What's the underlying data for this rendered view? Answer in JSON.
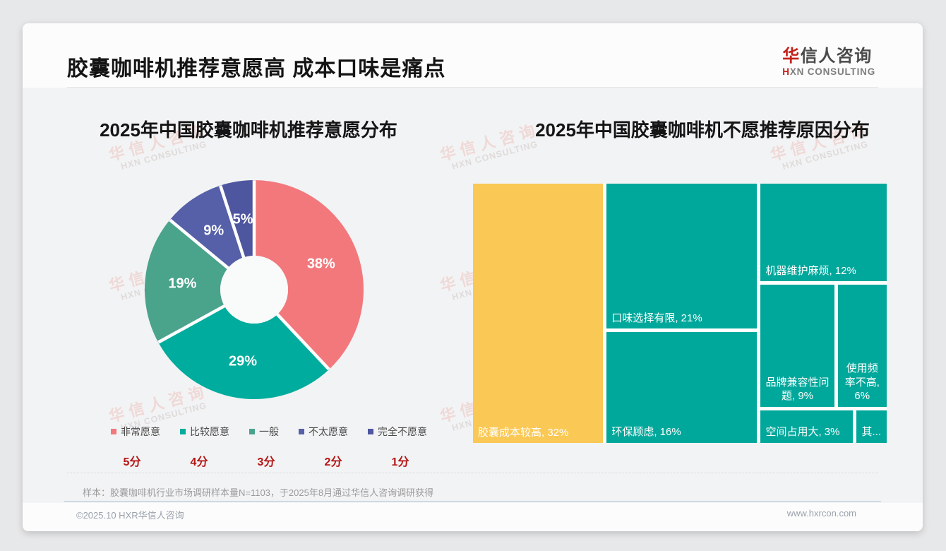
{
  "page": {
    "title": "胶囊咖啡机推荐意愿高 成本口味是痛点"
  },
  "logo": {
    "cn_red": "华",
    "cn_rest": "信人咨询",
    "en_red": "H",
    "en_rest": "XN CONSULTING"
  },
  "watermark": {
    "cn": "华信人咨询",
    "en": "HXN CONSULTING"
  },
  "footer": {
    "note": "样本：胶囊咖啡机行业市场调研样本量N=1103，于2025年8月通过华信人咨询调研获得",
    "copyright": "©2025.10 HXR华信人咨询",
    "website": "www.hxrcon.com"
  },
  "chart_data": [
    {
      "type": "pie",
      "title": "2025年中国胶囊咖啡机推荐意愿分布",
      "donut": true,
      "start_angle": "top",
      "direction": "clockwise",
      "series": [
        {
          "label": "非常愿意",
          "score": "5分",
          "value": 38,
          "color": "#F2787C"
        },
        {
          "label": "比较愿意",
          "score": "4分",
          "value": 29,
          "color": "#00AC9D"
        },
        {
          "label": "一般",
          "score": "3分",
          "value": 19,
          "color": "#4AA38B"
        },
        {
          "label": "不太愿意",
          "score": "2分",
          "value": 9,
          "color": "#5560A8"
        },
        {
          "label": "完全不愿意",
          "score": "1分",
          "value": 5,
          "color": "#4E56A0"
        }
      ],
      "label_format": "{value}%"
    },
    {
      "type": "treemap",
      "title": "2025年中国胶囊咖啡机不愿推荐原因分布",
      "cells": [
        {
          "label": "胶囊成本较高",
          "value": 32,
          "color": "#FAC854",
          "text": "胶囊成本较高, 32%"
        },
        {
          "label": "口味选择有限",
          "value": 21,
          "color": "#00A89B",
          "text": "口味选择有限, 21%"
        },
        {
          "label": "环保顾虑",
          "value": 16,
          "color": "#00A89B",
          "text": "环保顾虑, 16%"
        },
        {
          "label": "机器维护麻烦",
          "value": 12,
          "color": "#00A89B",
          "text": "机器维护麻烦, 12%"
        },
        {
          "label": "品牌兼容性问题",
          "value": 9,
          "color": "#00A89B",
          "text": "品牌兼容性问题, 9%",
          "align": "center"
        },
        {
          "label": "使用频率不高",
          "value": 6,
          "color": "#00A89B",
          "text": "使用频率不高, 6%",
          "align": "center"
        },
        {
          "label": "空间占用大",
          "value": 3,
          "color": "#00A89B",
          "text": "空间占用大, 3%"
        },
        {
          "label": "其他",
          "value": 1,
          "color": "#00A89B",
          "text": "其...",
          "align": "center"
        }
      ],
      "layout": {
        "type": "row",
        "children": [
          {
            "size": 32,
            "cell": 0
          },
          {
            "size": 37,
            "type": "col",
            "children": [
              {
                "size": 21,
                "cell": 1
              },
              {
                "size": 16,
                "cell": 2
              }
            ]
          },
          {
            "size": 31,
            "type": "col",
            "children": [
              {
                "size": 12,
                "cell": 3
              },
              {
                "size": 15,
                "type": "row",
                "children": [
                  {
                    "size": 9,
                    "cell": 4
                  },
                  {
                    "size": 6,
                    "cell": 5
                  }
                ]
              },
              {
                "size": 4,
                "type": "row",
                "children": [
                  {
                    "size": 3,
                    "cell": 6
                  },
                  {
                    "size": 1,
                    "cell": 7
                  }
                ]
              }
            ]
          }
        ]
      }
    }
  ]
}
